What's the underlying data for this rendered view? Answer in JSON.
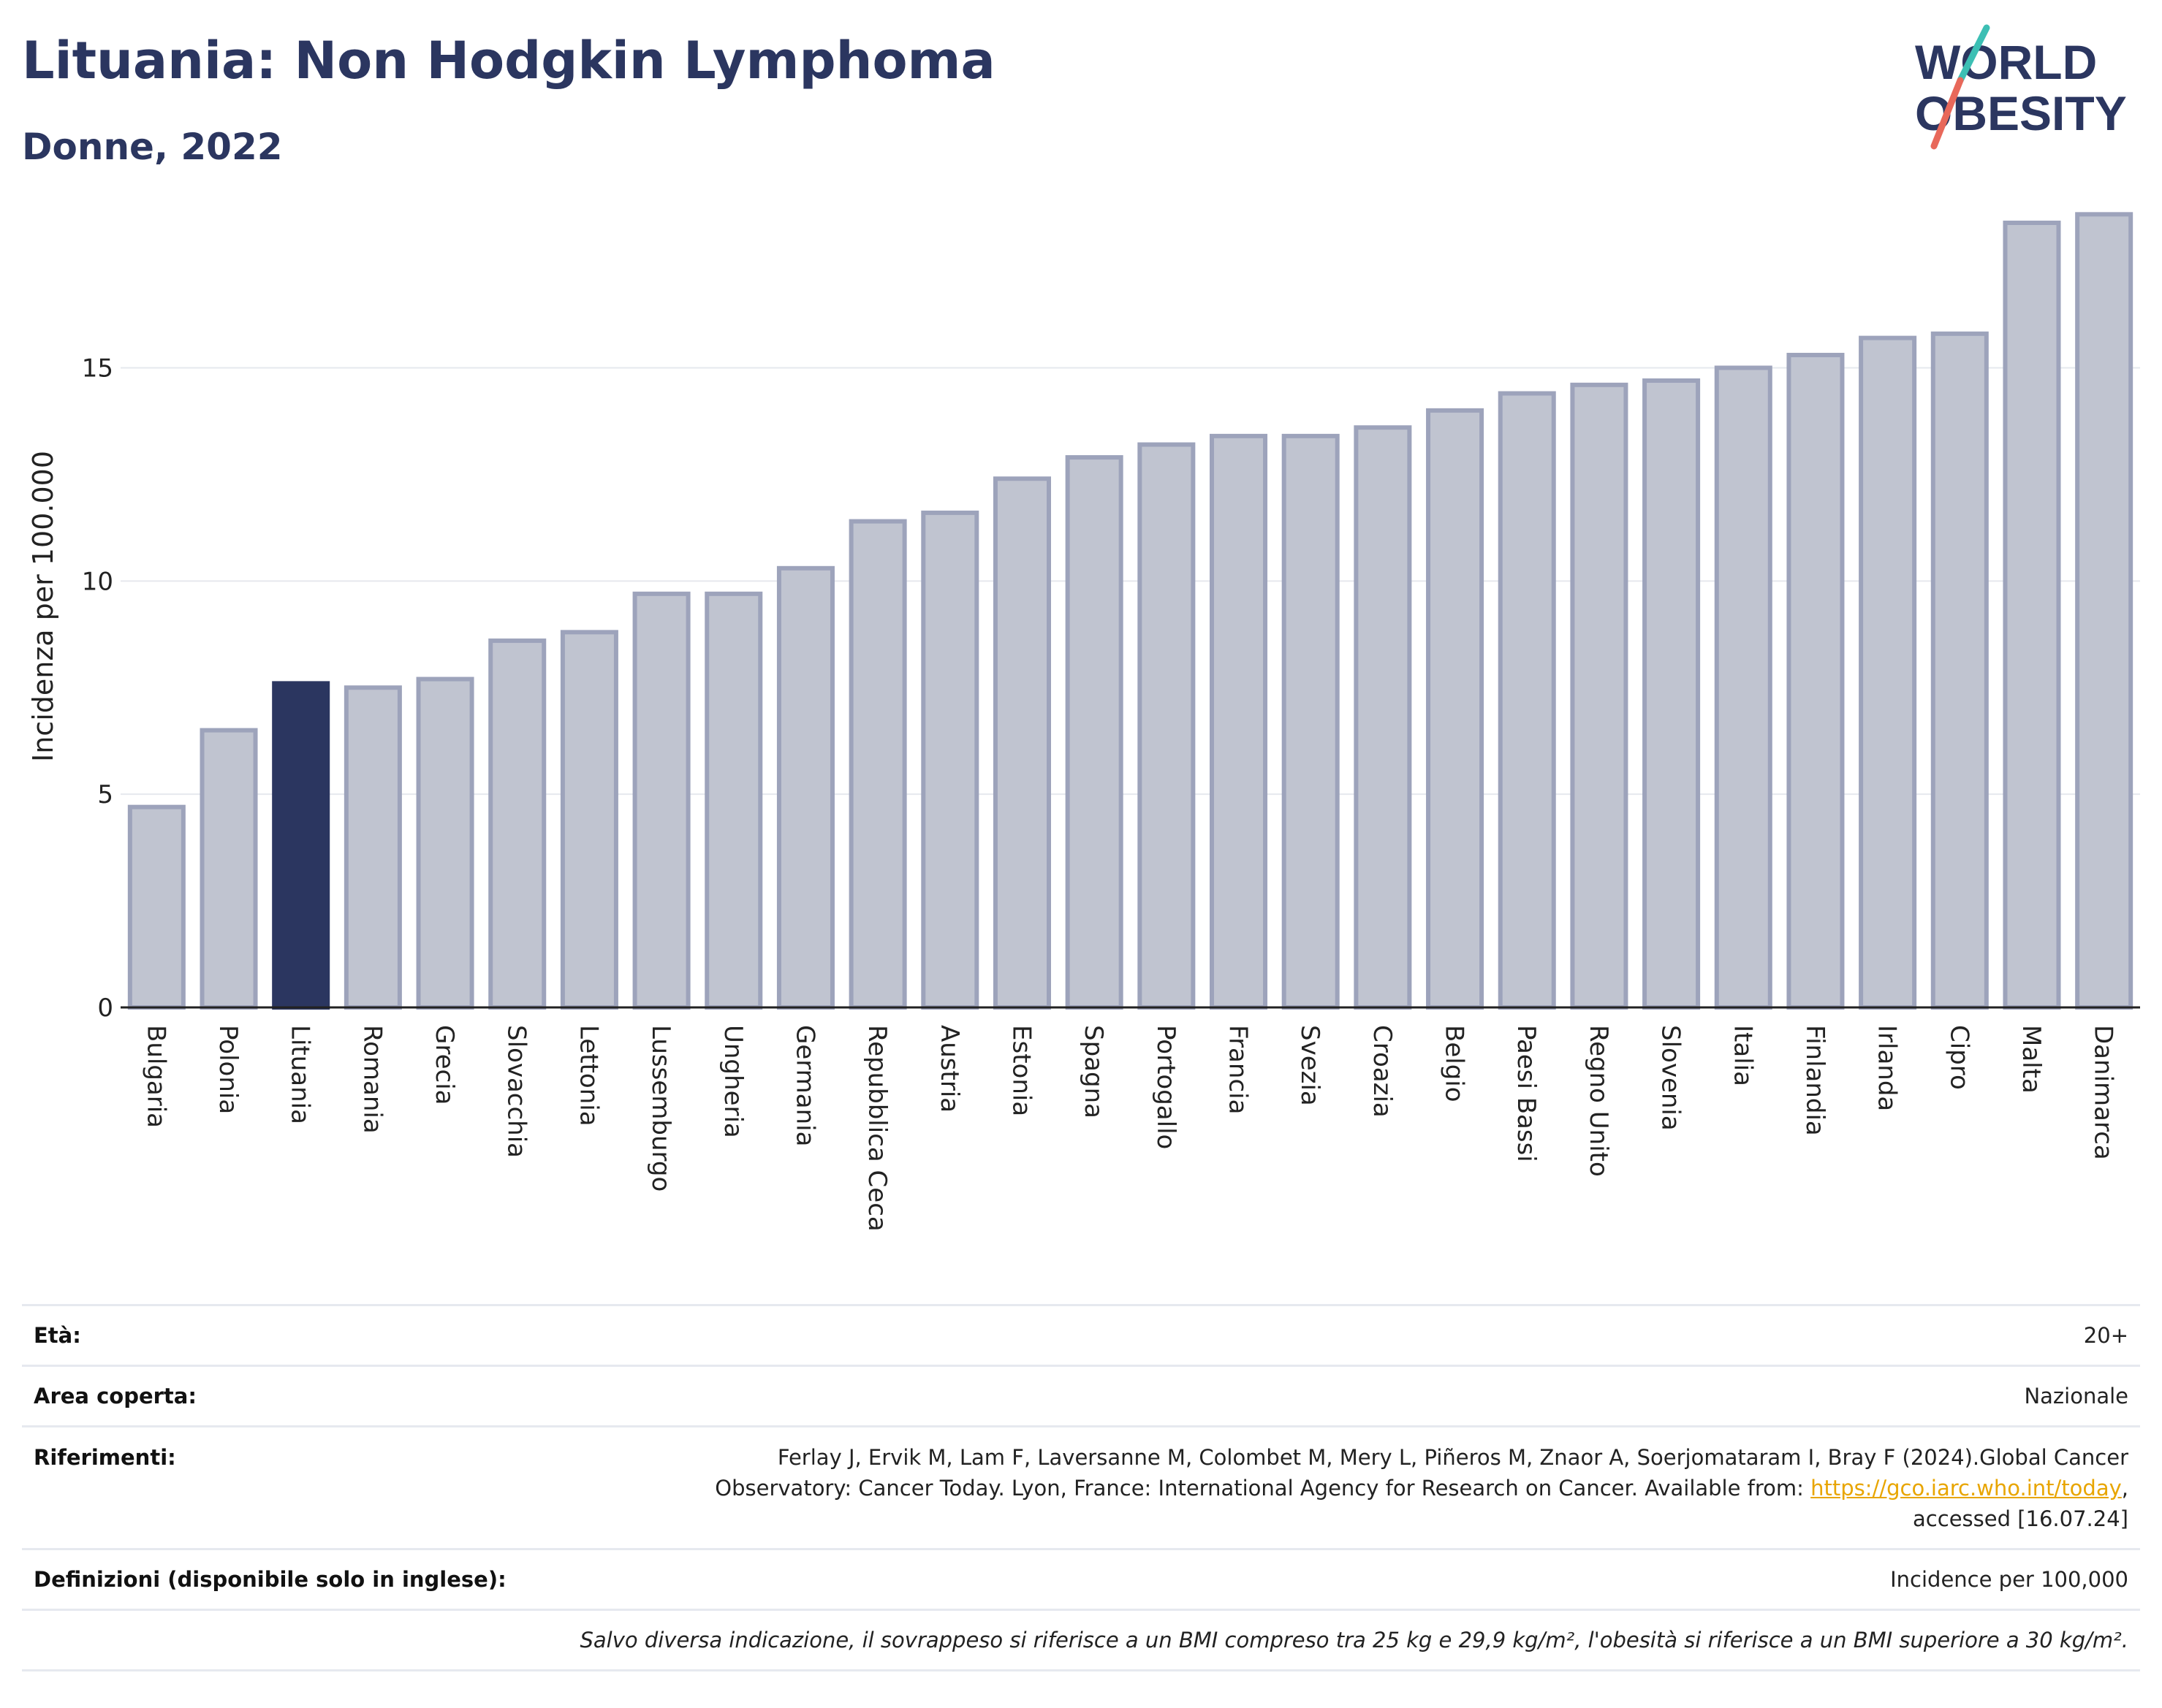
{
  "header": {
    "title": "Lituania: Non Hodgkin Lymphoma",
    "subtitle": "Donne, 2022"
  },
  "logo": {
    "line1": "WORLD",
    "line2": "OBESITY",
    "colors": {
      "text": "#2b3660",
      "slash_teal": "#3cbfb4",
      "slash_coral": "#e8685a"
    }
  },
  "colors": {
    "bar_fill": "#c0c4d0",
    "bar_stroke": "#9da3bb",
    "highlight": "#2b3660",
    "grid": "#e6e8ee",
    "axis": "#222222"
  },
  "chart_data": {
    "type": "bar",
    "title": "",
    "xlabel": "",
    "ylabel": "Incidenza per 100.000",
    "ylim": [
      0,
      19
    ],
    "yticks": [
      0,
      5,
      10,
      15
    ],
    "grid": true,
    "highlight": "Lituania",
    "categories": [
      "Bulgaria",
      "Polonia",
      "Lituania",
      "Romania",
      "Grecia",
      "Slovacchia",
      "Lettonia",
      "Lussemburgo",
      "Ungheria",
      "Germania",
      "Repubblica Ceca",
      "Austria",
      "Estonia",
      "Spagna",
      "Portogallo",
      "Francia",
      "Svezia",
      "Croazia",
      "Belgio",
      "Paesi Bassi",
      "Regno Unito",
      "Slovenia",
      "Italia",
      "Finlandia",
      "Irlanda",
      "Cipro",
      "Malta",
      "Danimarca"
    ],
    "values": [
      4.7,
      6.5,
      7.6,
      7.5,
      7.7,
      8.6,
      8.8,
      9.7,
      9.7,
      10.3,
      11.4,
      11.6,
      12.4,
      12.9,
      13.2,
      13.4,
      13.4,
      13.6,
      14.0,
      14.4,
      14.6,
      14.7,
      15.0,
      15.3,
      15.7,
      15.8,
      18.4,
      18.6
    ]
  },
  "info": {
    "age_label": "Età:",
    "age_value": "20+",
    "area_label": "Area coperta:",
    "area_value": "Nazionale",
    "ref_label": "Riferimenti:",
    "ref_text_line1": "Ferlay J, Ervik M, Lam F, Laversanne M, Colombet M, Mery L, Piñeros M, Znaor A, Soerjomataram I, Bray F (2024).Global Cancer",
    "ref_text_line2": "Observatory: Cancer Today. Lyon, France: International Agency for Research on Cancer. Available from:",
    "ref_link": "https://gco.iarc.who.int/today",
    "ref_text_line3": "accessed [16.07.24]",
    "def_label": "Definizioni (disponibile solo in inglese):",
    "def_value": "Incidence per 100,000",
    "note": "Salvo diversa indicazione, il sovrappeso si riferisce a un BMI compreso tra 25 kg e 29,9 kg/m², l'obesità si riferisce a un BMI superiore a 30 kg/m²."
  }
}
